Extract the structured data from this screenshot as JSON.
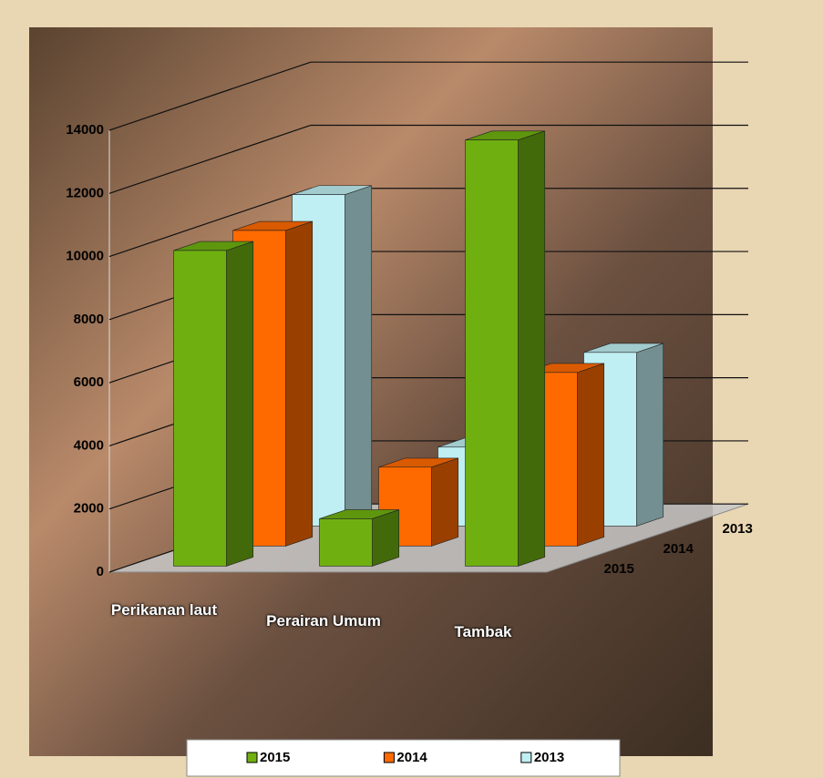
{
  "chart_data": {
    "type": "bar3d",
    "categories": [
      "Perikanan laut",
      "Perairan Umum",
      "Tambak"
    ],
    "series": [
      {
        "name": "2015",
        "color": "#6fb010",
        "values": [
          10000,
          1500,
          13500
        ]
      },
      {
        "name": "2014",
        "color": "#ff6a00",
        "values": [
          10000,
          2500,
          5500
        ]
      },
      {
        "name": "2013",
        "color": "#bfeff2",
        "values": [
          10500,
          2500,
          5500
        ]
      }
    ],
    "ylim": [
      0,
      14000
    ],
    "yticks": [
      0,
      2000,
      4000,
      6000,
      8000,
      10000,
      12000,
      14000
    ],
    "grid": true,
    "legend": "bottom"
  }
}
